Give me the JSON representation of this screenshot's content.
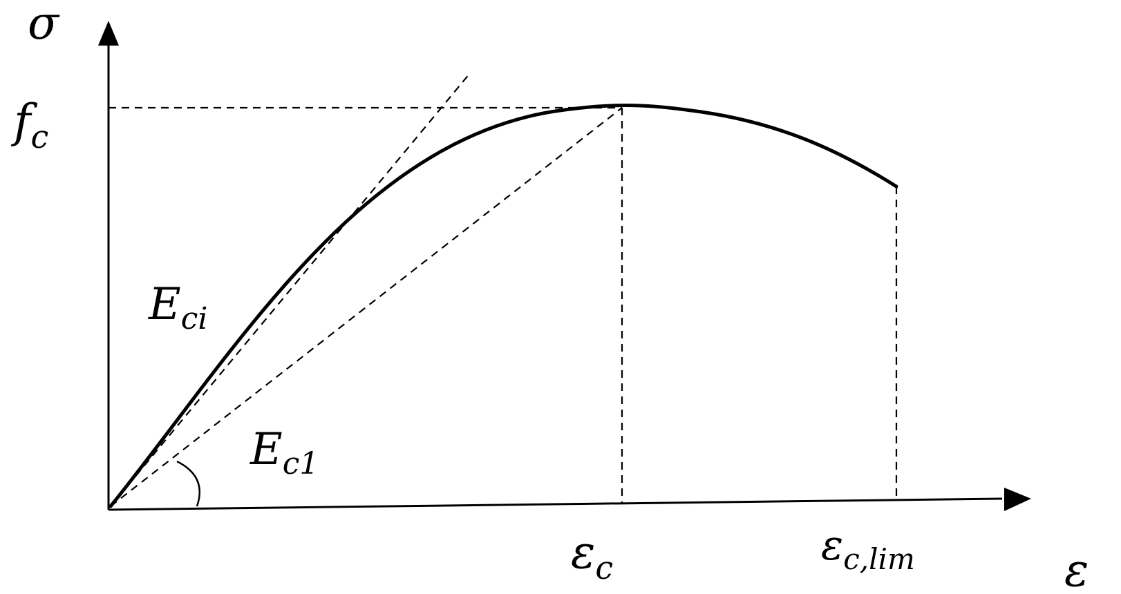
{
  "axes": {
    "y_label": "σ",
    "x_label": "ε"
  },
  "labels": {
    "peak_stress": {
      "base": "f",
      "sub": "c"
    },
    "peak_strain": {
      "base": "ε",
      "sub": "c"
    },
    "limit_strain": {
      "base": "ε",
      "sub": "c,lim"
    },
    "initial_modulus": {
      "base": "E",
      "sub": "ci"
    },
    "secant_modulus": {
      "base": "E",
      "sub": "c1"
    }
  },
  "colors": {
    "ink": "#000000",
    "background": "#ffffff"
  }
}
